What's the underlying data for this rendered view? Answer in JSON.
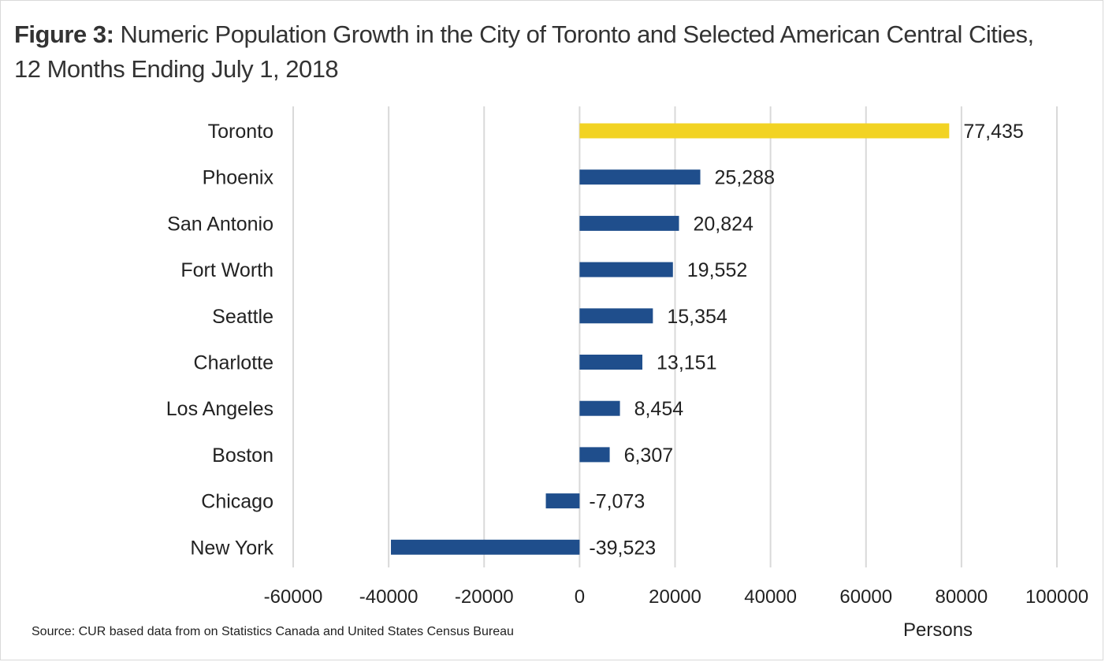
{
  "figure": {
    "label": "Figure 3:",
    "title": "Numeric Population Growth in the City of Toronto and Selected American Central Cities, 12 Months Ending July 1, 2018",
    "source": "Source: CUR based data from on Statistics Canada and United States Census Bureau"
  },
  "chart_data": {
    "type": "bar",
    "orientation": "horizontal",
    "title": "Numeric Population Growth in the City of Toronto and Selected American Central Cities, 12 Months Ending July 1, 2018",
    "xlabel": "Persons",
    "ylabel": "",
    "xlim": [
      -60000,
      100000
    ],
    "xticks": [
      -60000,
      -40000,
      -20000,
      0,
      20000,
      40000,
      60000,
      80000,
      100000
    ],
    "xtick_labels": [
      "-60000",
      "-40000",
      "-20000",
      "0",
      "20000",
      "40000",
      "60000",
      "80000",
      "100000"
    ],
    "grid": "vertical",
    "legend": "none",
    "categories": [
      "Toronto",
      "Phoenix",
      "San Antonio",
      "Fort Worth",
      "Seattle",
      "Charlotte",
      "Los Angeles",
      "Boston",
      "Chicago",
      "New York"
    ],
    "values": [
      77435,
      25288,
      20824,
      19552,
      15354,
      13151,
      8454,
      6307,
      -7073,
      -39523
    ],
    "data_labels": [
      "77,435",
      "25,288",
      "20,824",
      "19,552",
      "15,354",
      "13,151",
      "8,454",
      "6,307",
      "-7,073",
      "-39,523"
    ],
    "colors": {
      "highlight": "#f2d323",
      "default": "#1f4e8c",
      "grid": "#d9d9d9"
    },
    "highlight_category": "Toronto"
  }
}
